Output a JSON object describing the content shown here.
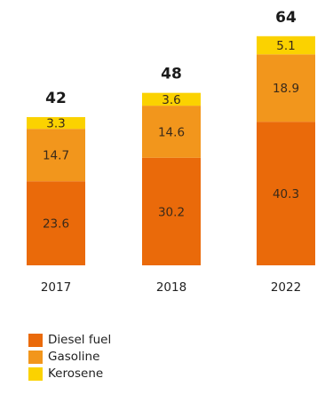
{
  "chart_data": {
    "type": "bar",
    "stacked": true,
    "categories": [
      "2017",
      "2018",
      "2022"
    ],
    "series": [
      {
        "name": "Diesel fuel",
        "color": "#ea6a0a",
        "values": [
          23.6,
          30.2,
          40.3
        ],
        "labels": [
          "23.6",
          "30.2",
          "40.3"
        ]
      },
      {
        "name": "Gasoline",
        "color": "#f2961c",
        "values": [
          14.7,
          14.6,
          18.9
        ],
        "labels": [
          "14.7",
          "14.6",
          "18.9"
        ]
      },
      {
        "name": "Kerosene",
        "color": "#fbd200",
        "values": [
          3.3,
          3.6,
          5.1
        ],
        "labels": [
          "3.3",
          "3.6",
          "5.1"
        ]
      }
    ],
    "totals": [
      "42",
      "48",
      "64"
    ],
    "title": "",
    "xlabel": "",
    "ylabel": "",
    "ylim": [
      0,
      64
    ],
    "grid": false,
    "legend_position": "bottom-left"
  }
}
